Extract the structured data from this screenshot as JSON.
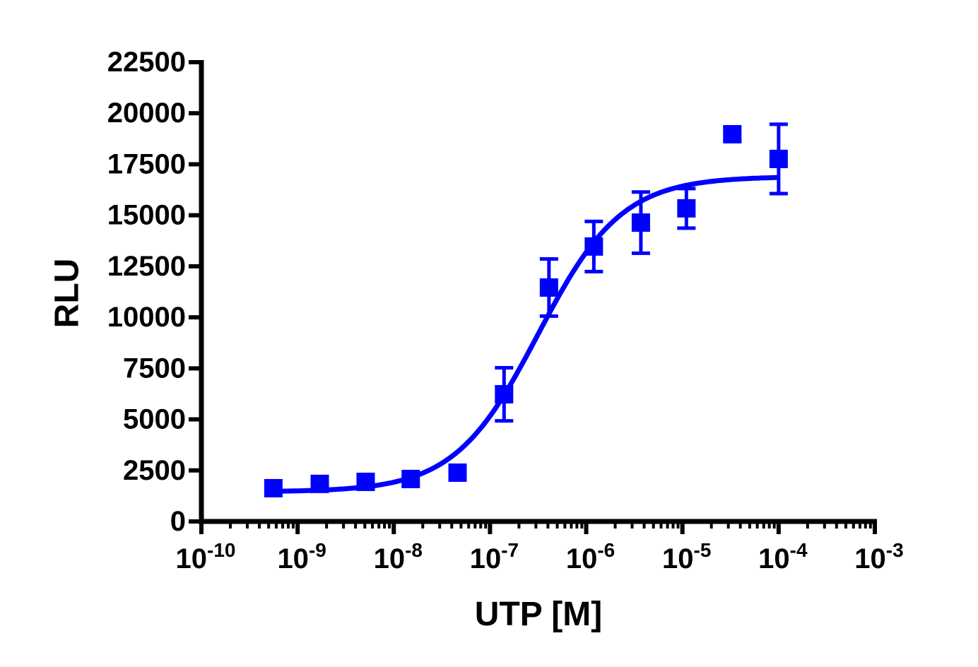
{
  "chart_data": {
    "type": "scatter",
    "title": "",
    "xlabel": "UTP [M]",
    "ylabel": "RLU",
    "xscale": "log",
    "xlim": [
      1e-10,
      0.001
    ],
    "ylim": [
      0,
      22500
    ],
    "grid": false,
    "legend": null,
    "x_ticks": [
      {
        "base": "10",
        "exp": "-10",
        "value": -10
      },
      {
        "base": "10",
        "exp": "-9",
        "value": -9
      },
      {
        "base": "10",
        "exp": "-8",
        "value": -8
      },
      {
        "base": "10",
        "exp": "-7",
        "value": -7
      },
      {
        "base": "10",
        "exp": "-6",
        "value": -6
      },
      {
        "base": "10",
        "exp": "-5",
        "value": -5
      },
      {
        "base": "10",
        "exp": "-4",
        "value": -4
      },
      {
        "base": "10",
        "exp": "-3",
        "value": -3
      }
    ],
    "y_ticks": [
      0,
      2500,
      5000,
      7500,
      10000,
      12500,
      15000,
      17500,
      20000,
      22500
    ],
    "series": [
      {
        "name": "UTP",
        "color": "#0000ff",
        "marker": "square",
        "x": [
          5.6e-10,
          1.7e-09,
          5.1e-09,
          1.5e-08,
          4.6e-08,
          1.4e-07,
          4.1e-07,
          1.2e-06,
          3.7e-06,
          1.1e-05,
          3.3e-05,
          0.0001
        ],
        "y": [
          1630,
          1840,
          1940,
          2080,
          2390,
          6230,
          11460,
          13470,
          14640,
          15340,
          18970,
          17760
        ],
        "y_err": [
          0,
          0,
          0,
          0,
          0,
          1300,
          1400,
          1230,
          1500,
          970,
          300,
          1700
        ]
      }
    ],
    "fit_curve": {
      "type": "sigmoidal dose-response",
      "color": "#0000ff",
      "bottom": 1450,
      "top": 16900,
      "log_ec50": -6.5,
      "hill_slope": 1.0
    }
  }
}
